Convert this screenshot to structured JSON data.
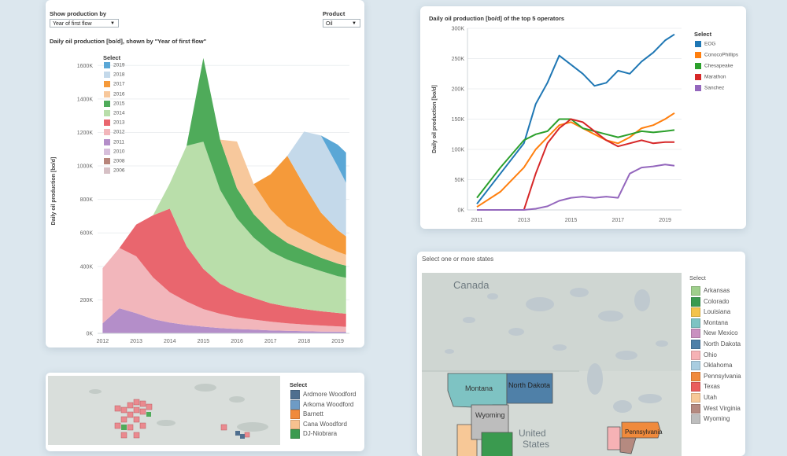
{
  "production_panel": {
    "show_label": "Show production by",
    "show_value": "Year of first flow",
    "product_label": "Product",
    "product_value": "Oil",
    "legend_title": "Select"
  },
  "operators_panel": {
    "legend_title": "Select"
  },
  "states_panel": {
    "title": "Select one or more states",
    "legend_title": "Select",
    "states": [
      {
        "name": "Arkansas",
        "color": "#9fcf8c"
      },
      {
        "name": "Colorado",
        "color": "#3a9a4f"
      },
      {
        "name": "Louisiana",
        "color": "#f3c34b"
      },
      {
        "name": "Montana",
        "color": "#7ec3c3"
      },
      {
        "name": "New Mexico",
        "color": "#c991c0"
      },
      {
        "name": "North Dakota",
        "color": "#4f80a8"
      },
      {
        "name": "Ohio",
        "color": "#f6b2b5"
      },
      {
        "name": "Oklahoma",
        "color": "#a9cde0"
      },
      {
        "name": "Pennsylvania",
        "color": "#f08a3c"
      },
      {
        "name": "Texas",
        "color": "#ea5d5d"
      },
      {
        "name": "Utah",
        "color": "#f7c897"
      },
      {
        "name": "West Virginia",
        "color": "#b58a80"
      },
      {
        "name": "Wyoming",
        "color": "#bdbdbd"
      }
    ],
    "map_labels": {
      "canada": "Canada",
      "montana": "Montana",
      "north_dakota": "North Dakota",
      "wyoming": "Wyoming",
      "united_states": "United",
      "united_states_2": "States",
      "pennsylvania": "Pennsylvania"
    }
  },
  "plays_panel": {
    "legend_title": "Select",
    "plays": [
      {
        "name": "Ardmore Woodford",
        "color": "#4f6f8f"
      },
      {
        "name": "Arkoma Woodford",
        "color": "#6e9bc5"
      },
      {
        "name": "Barnett",
        "color": "#f08a3c"
      },
      {
        "name": "Cana Woodford",
        "color": "#f7c18f"
      },
      {
        "name": "DJ-Niobrara",
        "color": "#3a9a4f"
      }
    ]
  },
  "chart_data": [
    {
      "type": "area",
      "title": "Daily oil production [bo/d], shown by \"Year of first flow\"",
      "xlabel": "",
      "ylabel": "Daily oil production [bo/d]",
      "x": [
        2012.0,
        2012.5,
        2013.0,
        2013.5,
        2014.0,
        2014.5,
        2015.0,
        2015.5,
        2016.0,
        2016.5,
        2017.0,
        2017.5,
        2018.0,
        2018.5,
        2019.0,
        2019.25
      ],
      "xticks": [
        "2012",
        "2013",
        "2014",
        "2015",
        "2016",
        "2017",
        "2018",
        "2019"
      ],
      "yticks": [
        "0K",
        "200K",
        "400K",
        "600K",
        "800K",
        "1000K",
        "1200K",
        "1400K",
        "1600K"
      ],
      "ylim": [
        0,
        1700000
      ],
      "stack_order": [
        "2006",
        "2008",
        "2010",
        "2011",
        "2012",
        "2013",
        "2014",
        "2015",
        "2016",
        "2017",
        "2018",
        "2019"
      ],
      "series": [
        {
          "name": "2006",
          "color": "#d6c0c5",
          "values": [
            0,
            0,
            0,
            0,
            0,
            0,
            0,
            0,
            0,
            0,
            0,
            0,
            0,
            0,
            0,
            0
          ]
        },
        {
          "name": "2008",
          "color": "#b7847a",
          "values": [
            0,
            0,
            0,
            0,
            0,
            0,
            0,
            0,
            0,
            0,
            0,
            0,
            0,
            0,
            0,
            0
          ]
        },
        {
          "name": "2010",
          "color": "#d7bfdb",
          "values": [
            0,
            0,
            0,
            0,
            0,
            0,
            0,
            0,
            0,
            0,
            0,
            0,
            0,
            0,
            0,
            0
          ]
        },
        {
          "name": "2011",
          "color": "#b48ec9",
          "values": [
            60000,
            150000,
            120000,
            85000,
            65000,
            50000,
            40000,
            32000,
            26000,
            22000,
            18000,
            15000,
            13000,
            11000,
            10000,
            9500
          ]
        },
        {
          "name": "2012",
          "color": "#f2b6bb",
          "values": [
            330000,
            360000,
            340000,
            250000,
            180000,
            140000,
            105000,
            85000,
            70000,
            60000,
            52000,
            45000,
            40000,
            36000,
            32000,
            30000
          ]
        },
        {
          "name": "2013",
          "color": "#e9666e",
          "values": [
            0,
            0,
            190000,
            370000,
            500000,
            330000,
            240000,
            180000,
            150000,
            130000,
            110000,
            100000,
            92000,
            85000,
            80000,
            78000
          ]
        },
        {
          "name": "2014",
          "color": "#b9deaa",
          "values": [
            0,
            0,
            0,
            0,
            150000,
            600000,
            760000,
            560000,
            440000,
            360000,
            310000,
            280000,
            260000,
            240000,
            220000,
            215000
          ]
        },
        {
          "name": "2015",
          "color": "#4fab5a",
          "values": [
            0,
            0,
            0,
            0,
            0,
            0,
            500000,
            300000,
            180000,
            140000,
            120000,
            100000,
            90000,
            80000,
            75000,
            72000
          ]
        },
        {
          "name": "2016",
          "color": "#f7c89c",
          "values": [
            0,
            0,
            0,
            0,
            0,
            0,
            0,
            0,
            280000,
            180000,
            130000,
            100000,
            90000,
            80000,
            70000,
            65000
          ]
        },
        {
          "name": "2017",
          "color": "#f59a3a",
          "values": [
            0,
            0,
            0,
            0,
            0,
            0,
            0,
            0,
            0,
            0,
            210000,
            420000,
            300000,
            190000,
            130000,
            110000
          ]
        },
        {
          "name": "2018",
          "color": "#c4d9ea",
          "values": [
            0,
            0,
            0,
            0,
            0,
            0,
            0,
            0,
            0,
            0,
            0,
            0,
            320000,
            460000,
            380000,
            320000
          ]
        },
        {
          "name": "2019",
          "color": "#5aa7d6",
          "values": [
            0,
            0,
            0,
            0,
            0,
            0,
            0,
            0,
            0,
            0,
            0,
            0,
            0,
            0,
            130000,
            180000
          ]
        }
      ]
    },
    {
      "type": "line",
      "title": "Daily oil production [bo/d] of the top 5 operators",
      "xlabel": "",
      "ylabel": "Daily oil production [bo/d]",
      "x": [
        2011,
        2012,
        2013,
        2013.5,
        2014,
        2014.5,
        2015,
        2015.5,
        2016,
        2016.5,
        2017,
        2017.5,
        2018,
        2018.5,
        2019,
        2019.4
      ],
      "xticks": [
        "2011",
        "2013",
        "2015",
        "2017",
        "2019"
      ],
      "yticks": [
        "0K",
        "50K",
        "100K",
        "150K",
        "200K",
        "250K",
        "300K"
      ],
      "ylim": [
        0,
        300000
      ],
      "series": [
        {
          "name": "EOG",
          "color": "#1f77b4",
          "values": [
            10000,
            60000,
            110000,
            175000,
            210000,
            255000,
            240000,
            225000,
            205000,
            210000,
            230000,
            225000,
            245000,
            260000,
            280000,
            290000
          ]
        },
        {
          "name": "ConocoPhillips",
          "color": "#ff7f0e",
          "values": [
            5000,
            30000,
            70000,
            100000,
            120000,
            140000,
            145000,
            135000,
            125000,
            115000,
            110000,
            120000,
            135000,
            140000,
            150000,
            160000
          ]
        },
        {
          "name": "Chesapeake",
          "color": "#2ca02c",
          "values": [
            20000,
            70000,
            115000,
            125000,
            130000,
            150000,
            150000,
            135000,
            130000,
            125000,
            120000,
            125000,
            130000,
            128000,
            130000,
            132000
          ]
        },
        {
          "name": "Marathon",
          "color": "#d62728",
          "values": [
            0,
            0,
            0,
            60000,
            110000,
            135000,
            150000,
            145000,
            130000,
            115000,
            105000,
            110000,
            115000,
            110000,
            112000,
            112000
          ]
        },
        {
          "name": "Sanchez",
          "color": "#9467bd",
          "values": [
            0,
            0,
            0,
            2000,
            6000,
            15000,
            20000,
            22000,
            20000,
            22000,
            20000,
            60000,
            70000,
            72000,
            75000,
            73000
          ]
        }
      ]
    }
  ]
}
